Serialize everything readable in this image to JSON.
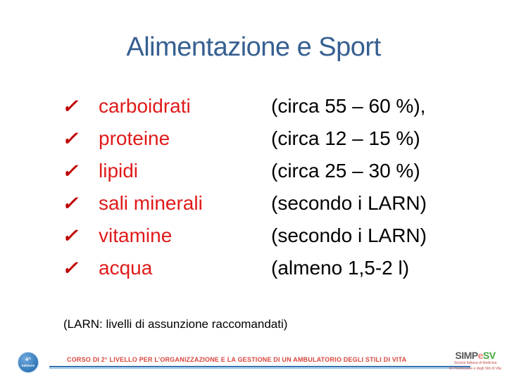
{
  "slide": {
    "title": "Alimentazione e Sport",
    "check_glyph": "✓",
    "items": [
      {
        "name": "carboidrati",
        "detail": "(circa 55 – 60 %),"
      },
      {
        "name": "proteine",
        "detail": "(circa 12 – 15 %)"
      },
      {
        "name": "lipidi",
        "detail": "(circa 25 – 30 %)"
      },
      {
        "name": "sali minerali",
        "detail": "(secondo i LARN)"
      },
      {
        "name": "vitamine",
        "detail": "(secondo i LARN)"
      },
      {
        "name": "acqua",
        "detail": "(almeno 1,5-2 l)"
      }
    ],
    "note": "(LARN: livelli di assunzione raccomandati)"
  },
  "footer": {
    "badge": {
      "line1": "4^",
      "line2": "Edizione"
    },
    "course_title": "CORSO DI 2° LIVELLO PER L’ORGANIZZAZIONE E LA GESTIONE  DI UN AMBULATORIO DEGLI STILI DI VITA",
    "logo": {
      "part_simp": "SIMP",
      "part_e": "e",
      "part_sv": "SV",
      "tagline1": "Società Italiana di Medicina",
      "tagline2": "di Prevenzione e degli Stili di Vita"
    }
  },
  "colors": {
    "title_blue": "#365F91",
    "item_red": "#E01A1A",
    "check_red": "#C00000",
    "body_black": "#000000",
    "footer_red": "#D9453D",
    "line_blue": "#2E75B6",
    "logo_gray": "#58595B",
    "logo_e": "#E8837A",
    "logo_green": "#3FA535"
  }
}
